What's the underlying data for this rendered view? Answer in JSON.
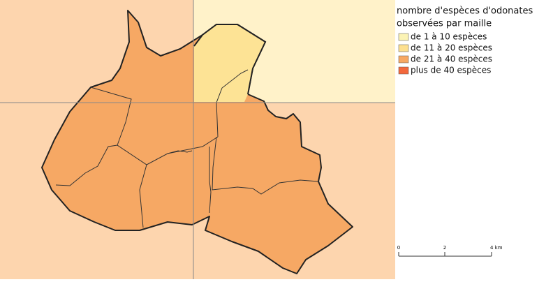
{
  "legend": {
    "title": [
      "nombre d'espèces d'odonates",
      "observées par maille"
    ],
    "items": [
      {
        "label": "de 1 à 10 espèces",
        "color": "#fbf3b5"
      },
      {
        "label": "de 11 à 20 espèces",
        "color": "#fde090"
      },
      {
        "label": "de 21 à 40 espèces",
        "color": "#f7a863"
      },
      {
        "label": "plus de 40 espèces",
        "color": "#f3683c"
      }
    ]
  },
  "scale_bar": {
    "labels": [
      "0",
      "2",
      "4 km"
    ]
  }
}
